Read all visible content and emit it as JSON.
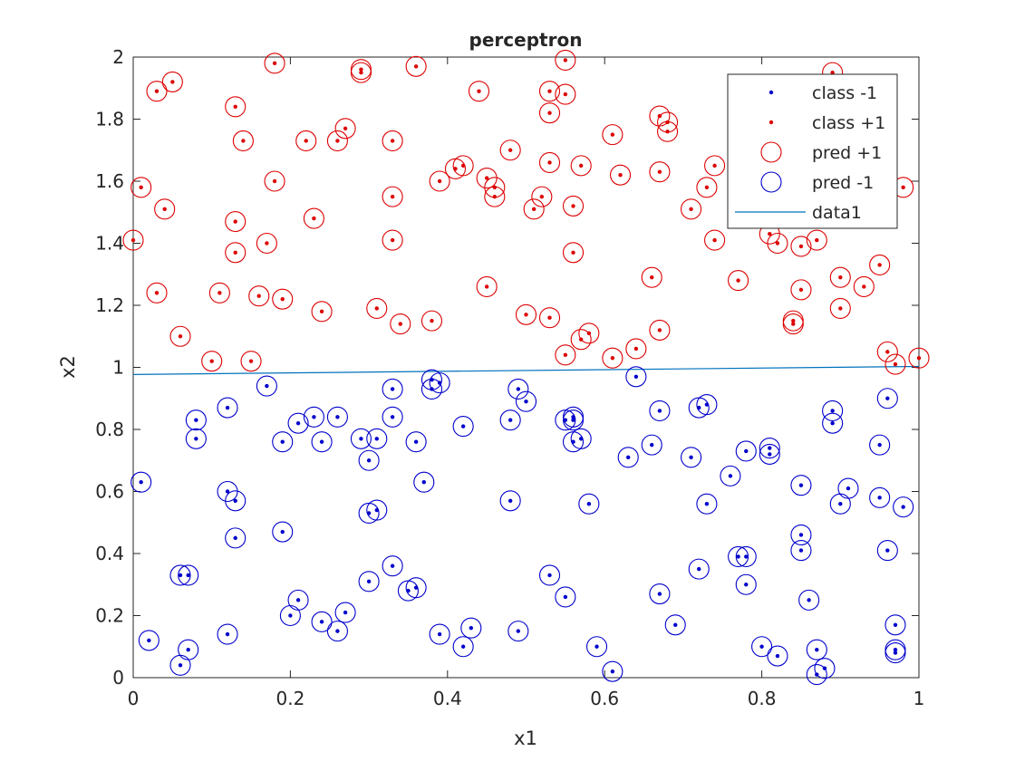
{
  "chart_data": {
    "type": "scatter",
    "title": "perceptron",
    "xlabel": "x1",
    "ylabel": "x2",
    "xlim": [
      0,
      1
    ],
    "ylim": [
      0,
      2
    ],
    "x_ticks": [
      "0",
      "0.2",
      "0.4",
      "0.6",
      "0.8",
      "1"
    ],
    "y_ticks": [
      "0",
      "0.2",
      "0.4",
      "0.6",
      "0.8",
      "1",
      "1.2",
      "1.4",
      "1.6",
      "1.8",
      "2"
    ],
    "grid": false,
    "legend_position": "top-right",
    "colors": {
      "class_neg": "#0000cc",
      "class_pos": "#dd0000",
      "pred_pos": "#dd0000",
      "pred_neg": "#0000cc",
      "line": "#0072bd"
    },
    "series": [
      {
        "name": "class -1",
        "marker": "dot",
        "points": [
          [
            0.01,
            0.63
          ],
          [
            0.02,
            0.12
          ],
          [
            0.06,
            0.04
          ],
          [
            0.06,
            0.33
          ],
          [
            0.07,
            0.33
          ],
          [
            0.07,
            0.09
          ],
          [
            0.08,
            0.77
          ],
          [
            0.08,
            0.83
          ],
          [
            0.12,
            0.14
          ],
          [
            0.12,
            0.6
          ],
          [
            0.12,
            0.87
          ],
          [
            0.13,
            0.57
          ],
          [
            0.13,
            0.45
          ],
          [
            0.17,
            0.94
          ],
          [
            0.19,
            0.76
          ],
          [
            0.19,
            0.47
          ],
          [
            0.2,
            0.2
          ],
          [
            0.21,
            0.25
          ],
          [
            0.21,
            0.82
          ],
          [
            0.23,
            0.84
          ],
          [
            0.24,
            0.18
          ],
          [
            0.24,
            0.76
          ],
          [
            0.26,
            0.15
          ],
          [
            0.26,
            0.84
          ],
          [
            0.27,
            0.21
          ],
          [
            0.29,
            0.77
          ],
          [
            0.3,
            0.7
          ],
          [
            0.3,
            0.53
          ],
          [
            0.3,
            0.31
          ],
          [
            0.31,
            0.54
          ],
          [
            0.31,
            0.77
          ],
          [
            0.33,
            0.36
          ],
          [
            0.33,
            0.93
          ],
          [
            0.33,
            0.84
          ],
          [
            0.35,
            0.28
          ],
          [
            0.36,
            0.29
          ],
          [
            0.36,
            0.76
          ],
          [
            0.37,
            0.63
          ],
          [
            0.38,
            0.96
          ],
          [
            0.38,
            0.93
          ],
          [
            0.39,
            0.14
          ],
          [
            0.39,
            0.95
          ],
          [
            0.42,
            0.1
          ],
          [
            0.42,
            0.81
          ],
          [
            0.43,
            0.16
          ],
          [
            0.48,
            0.57
          ],
          [
            0.48,
            0.83
          ],
          [
            0.49,
            0.93
          ],
          [
            0.49,
            0.15
          ],
          [
            0.5,
            0.89
          ],
          [
            0.53,
            0.33
          ],
          [
            0.55,
            0.26
          ],
          [
            0.55,
            0.83
          ],
          [
            0.56,
            0.76
          ],
          [
            0.56,
            0.83
          ],
          [
            0.56,
            0.84
          ],
          [
            0.57,
            0.77
          ],
          [
            0.58,
            0.56
          ],
          [
            0.59,
            0.1
          ],
          [
            0.61,
            0.02
          ],
          [
            0.63,
            0.71
          ],
          [
            0.64,
            0.97
          ],
          [
            0.66,
            0.75
          ],
          [
            0.67,
            0.27
          ],
          [
            0.67,
            0.86
          ],
          [
            0.69,
            0.17
          ],
          [
            0.71,
            0.71
          ],
          [
            0.72,
            0.35
          ],
          [
            0.72,
            0.87
          ],
          [
            0.73,
            0.88
          ],
          [
            0.73,
            0.56
          ],
          [
            0.76,
            0.65
          ],
          [
            0.77,
            0.39
          ],
          [
            0.78,
            0.39
          ],
          [
            0.78,
            0.73
          ],
          [
            0.78,
            0.3
          ],
          [
            0.8,
            0.1
          ],
          [
            0.81,
            0.74
          ],
          [
            0.81,
            0.72
          ],
          [
            0.82,
            0.07
          ],
          [
            0.85,
            0.62
          ],
          [
            0.85,
            0.46
          ],
          [
            0.85,
            0.41
          ],
          [
            0.86,
            0.25
          ],
          [
            0.87,
            0.01
          ],
          [
            0.87,
            0.09
          ],
          [
            0.88,
            0.03
          ],
          [
            0.89,
            0.86
          ],
          [
            0.89,
            0.82
          ],
          [
            0.9,
            0.56
          ],
          [
            0.91,
            0.61
          ],
          [
            0.95,
            0.58
          ],
          [
            0.95,
            0.75
          ],
          [
            0.96,
            0.41
          ],
          [
            0.96,
            0.9
          ],
          [
            0.97,
            0.17
          ],
          [
            0.97,
            0.09
          ],
          [
            0.97,
            0.08
          ],
          [
            0.98,
            0.55
          ]
        ]
      },
      {
        "name": "class +1",
        "marker": "dot",
        "points": [
          [
            0.0,
            1.41
          ],
          [
            0.01,
            1.58
          ],
          [
            0.03,
            1.89
          ],
          [
            0.03,
            1.24
          ],
          [
            0.04,
            1.51
          ],
          [
            0.05,
            1.92
          ],
          [
            0.06,
            1.1
          ],
          [
            0.1,
            1.02
          ],
          [
            0.11,
            1.24
          ],
          [
            0.13,
            1.84
          ],
          [
            0.13,
            1.47
          ],
          [
            0.13,
            1.37
          ],
          [
            0.14,
            1.73
          ],
          [
            0.15,
            1.02
          ],
          [
            0.16,
            1.23
          ],
          [
            0.17,
            1.4
          ],
          [
            0.18,
            1.98
          ],
          [
            0.18,
            1.6
          ],
          [
            0.19,
            1.22
          ],
          [
            0.22,
            1.73
          ],
          [
            0.23,
            1.48
          ],
          [
            0.24,
            1.18
          ],
          [
            0.26,
            1.73
          ],
          [
            0.27,
            1.77
          ],
          [
            0.29,
            1.96
          ],
          [
            0.29,
            1.95
          ],
          [
            0.31,
            1.19
          ],
          [
            0.33,
            1.73
          ],
          [
            0.33,
            1.55
          ],
          [
            0.33,
            1.41
          ],
          [
            0.34,
            1.14
          ],
          [
            0.36,
            1.97
          ],
          [
            0.38,
            1.15
          ],
          [
            0.39,
            1.6
          ],
          [
            0.41,
            1.64
          ],
          [
            0.42,
            1.65
          ],
          [
            0.44,
            1.89
          ],
          [
            0.45,
            1.26
          ],
          [
            0.45,
            1.61
          ],
          [
            0.46,
            1.58
          ],
          [
            0.46,
            1.55
          ],
          [
            0.48,
            1.7
          ],
          [
            0.5,
            1.17
          ],
          [
            0.51,
            1.51
          ],
          [
            0.52,
            1.55
          ],
          [
            0.53,
            1.82
          ],
          [
            0.53,
            1.89
          ],
          [
            0.53,
            1.66
          ],
          [
            0.53,
            1.16
          ],
          [
            0.55,
            1.99
          ],
          [
            0.55,
            1.88
          ],
          [
            0.55,
            1.04
          ],
          [
            0.56,
            1.37
          ],
          [
            0.56,
            1.52
          ],
          [
            0.57,
            1.65
          ],
          [
            0.57,
            1.09
          ],
          [
            0.58,
            1.11
          ],
          [
            0.61,
            1.75
          ],
          [
            0.61,
            1.03
          ],
          [
            0.62,
            1.62
          ],
          [
            0.64,
            1.06
          ],
          [
            0.66,
            1.29
          ],
          [
            0.67,
            1.81
          ],
          [
            0.67,
            1.63
          ],
          [
            0.67,
            1.12
          ],
          [
            0.68,
            1.79
          ],
          [
            0.68,
            1.76
          ],
          [
            0.71,
            1.51
          ],
          [
            0.73,
            1.58
          ],
          [
            0.74,
            1.65
          ],
          [
            0.74,
            1.41
          ],
          [
            0.77,
            1.28
          ],
          [
            0.77,
            1.56
          ],
          [
            0.81,
            1.43
          ],
          [
            0.82,
            1.4
          ],
          [
            0.84,
            1.15
          ],
          [
            0.84,
            1.14
          ],
          [
            0.85,
            1.39
          ],
          [
            0.85,
            1.25
          ],
          [
            0.87,
            1.41
          ],
          [
            0.89,
            1.95
          ],
          [
            0.9,
            1.19
          ],
          [
            0.9,
            1.29
          ],
          [
            0.93,
            1.26
          ],
          [
            0.95,
            1.33
          ],
          [
            0.96,
            1.05
          ],
          [
            0.97,
            1.01
          ],
          [
            0.98,
            1.58
          ],
          [
            1.0,
            1.03
          ]
        ]
      },
      {
        "name": "pred +1",
        "marker": "open-circle",
        "same_as": "class +1"
      },
      {
        "name": "pred -1",
        "marker": "open-circle",
        "same_as": "class -1"
      },
      {
        "name": "data1",
        "marker": "line",
        "points": [
          [
            0,
            0.977
          ],
          [
            1,
            1.003
          ]
        ]
      }
    ]
  }
}
